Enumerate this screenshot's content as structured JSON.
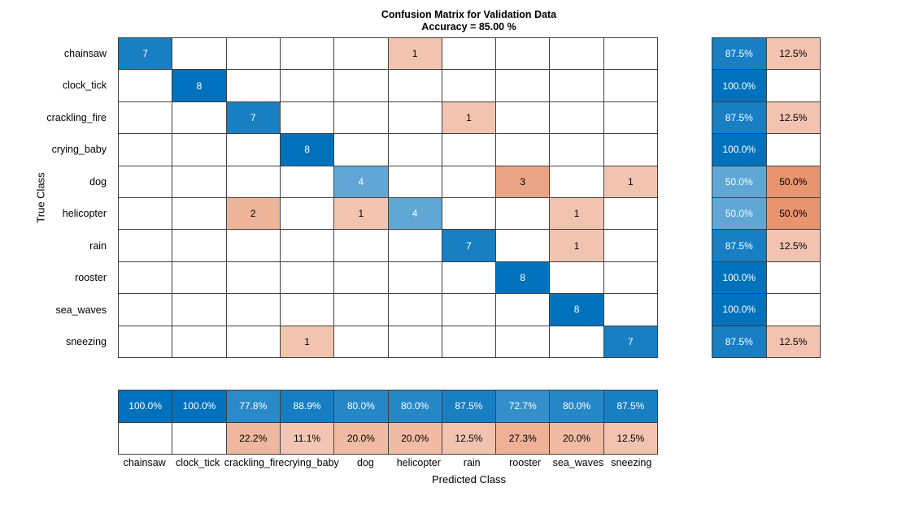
{
  "chart_data": {
    "type": "heatmap",
    "chart_kind": "confusion_matrix",
    "title": "Confusion Matrix for Validation Data",
    "subtitle": "Accuracy = 85.00 %",
    "xlabel": "Predicted Class",
    "ylabel": "True Class",
    "classes": [
      "chainsaw",
      "clock_tick",
      "crackling_fire",
      "crying_baby",
      "dog",
      "helicopter",
      "rain",
      "rooster",
      "sea_waves",
      "sneezing"
    ],
    "matrix": [
      [
        7,
        0,
        0,
        0,
        0,
        1,
        0,
        0,
        0,
        0
      ],
      [
        0,
        8,
        0,
        0,
        0,
        0,
        0,
        0,
        0,
        0
      ],
      [
        0,
        0,
        7,
        0,
        0,
        0,
        1,
        0,
        0,
        0
      ],
      [
        0,
        0,
        0,
        8,
        0,
        0,
        0,
        0,
        0,
        0
      ],
      [
        0,
        0,
        0,
        0,
        4,
        0,
        0,
        3,
        0,
        1
      ],
      [
        0,
        0,
        2,
        0,
        1,
        4,
        0,
        0,
        1,
        0
      ],
      [
        0,
        0,
        0,
        0,
        0,
        0,
        7,
        0,
        1,
        0
      ],
      [
        0,
        0,
        0,
        0,
        0,
        0,
        0,
        8,
        0,
        0
      ],
      [
        0,
        0,
        0,
        0,
        0,
        0,
        0,
        0,
        8,
        0
      ],
      [
        0,
        0,
        0,
        1,
        0,
        0,
        0,
        0,
        0,
        7
      ]
    ],
    "row_summary": {
      "tpr": [
        "87.5%",
        "100.0%",
        "87.5%",
        "100.0%",
        "50.0%",
        "50.0%",
        "87.5%",
        "100.0%",
        "100.0%",
        "87.5%"
      ],
      "fnr": [
        "12.5%",
        "",
        "12.5%",
        "",
        "50.0%",
        "50.0%",
        "12.5%",
        "",
        "",
        "12.5%"
      ]
    },
    "col_summary": {
      "ppv": [
        "100.0%",
        "100.0%",
        "77.8%",
        "88.9%",
        "80.0%",
        "80.0%",
        "87.5%",
        "72.7%",
        "80.0%",
        "87.5%"
      ],
      "fdr": [
        "",
        "",
        "22.2%",
        "11.1%",
        "20.0%",
        "20.0%",
        "12.5%",
        "27.3%",
        "20.0%",
        "12.5%"
      ]
    },
    "colors": {
      "correct": "#0072BD",
      "incorrect": "#D95319",
      "grid_line": "#404040",
      "empty_cell": "#ffffff",
      "text_dark": "#000000",
      "text_light": "#ffffff"
    },
    "grid": true,
    "legend_position": "none"
  }
}
